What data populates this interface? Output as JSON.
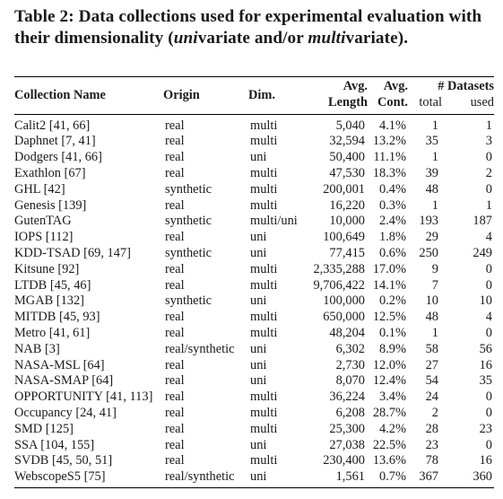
{
  "caption": {
    "prefix": "Table 2: Data collections used for experimental evaluation with their dimensionality (",
    "uni_word": "uni",
    "variate_1": "variate and/or ",
    "multi_word": "multi",
    "variate_2": "variate)."
  },
  "table": {
    "headers": {
      "name": "Collection Name",
      "origin": "Origin",
      "dim": "Dim.",
      "avg_1": "Avg.",
      "avg_2": "Avg.",
      "datasets": "# Datasets",
      "length": "Length",
      "cont": "Cont.",
      "total": "total",
      "used": "used"
    },
    "rows": [
      {
        "name": "Calit2 [41, 66]",
        "origin": "real",
        "dim": "multi",
        "length": "5,040",
        "cont": "4.1%",
        "total": "1",
        "used": "1"
      },
      {
        "name": "Daphnet [7, 41]",
        "origin": "real",
        "dim": "multi",
        "length": "32,594",
        "cont": "13.2%",
        "total": "35",
        "used": "3"
      },
      {
        "name": "Dodgers [41, 66]",
        "origin": "real",
        "dim": "uni",
        "length": "50,400",
        "cont": "11.1%",
        "total": "1",
        "used": "0"
      },
      {
        "name": "Exathlon [67]",
        "origin": "real",
        "dim": "multi",
        "length": "47,530",
        "cont": "18.3%",
        "total": "39",
        "used": "2"
      },
      {
        "name": "GHL [42]",
        "origin": "synthetic",
        "dim": "multi",
        "length": "200,001",
        "cont": "0.4%",
        "total": "48",
        "used": "0"
      },
      {
        "name": "Genesis [139]",
        "origin": "real",
        "dim": "multi",
        "length": "16,220",
        "cont": "0.3%",
        "total": "1",
        "used": "1"
      },
      {
        "name": "GutenTAG",
        "origin": "synthetic",
        "dim": "multi/uni",
        "length": "10,000",
        "cont": "2.4%",
        "total": "193",
        "used": "187"
      },
      {
        "name": "IOPS [112]",
        "origin": "real",
        "dim": "uni",
        "length": "100,649",
        "cont": "1.8%",
        "total": "29",
        "used": "4"
      },
      {
        "name": "KDD-TSAD [69, 147]",
        "origin": "synthetic",
        "dim": "uni",
        "length": "77,415",
        "cont": "0.6%",
        "total": "250",
        "used": "249"
      },
      {
        "name": "Kitsune [92]",
        "origin": "real",
        "dim": "multi",
        "length": "2,335,288",
        "cont": "17.0%",
        "total": "9",
        "used": "0"
      },
      {
        "name": "LTDB [45, 46]",
        "origin": "real",
        "dim": "multi",
        "length": "9,706,422",
        "cont": "14.1%",
        "total": "7",
        "used": "0"
      },
      {
        "name": "MGAB [132]",
        "origin": "synthetic",
        "dim": "uni",
        "length": "100,000",
        "cont": "0.2%",
        "total": "10",
        "used": "10"
      },
      {
        "name": "MITDB [45, 93]",
        "origin": "real",
        "dim": "multi",
        "length": "650,000",
        "cont": "12.5%",
        "total": "48",
        "used": "4"
      },
      {
        "name": "Metro [41, 61]",
        "origin": "real",
        "dim": "multi",
        "length": "48,204",
        "cont": "0.1%",
        "total": "1",
        "used": "0"
      },
      {
        "name": "NAB [3]",
        "origin": "real/synthetic",
        "dim": "uni",
        "length": "6,302",
        "cont": "8.9%",
        "total": "58",
        "used": "56"
      },
      {
        "name": "NASA-MSL [64]",
        "origin": "real",
        "dim": "uni",
        "length": "2,730",
        "cont": "12.0%",
        "total": "27",
        "used": "16"
      },
      {
        "name": "NASA-SMAP [64]",
        "origin": "real",
        "dim": "uni",
        "length": "8,070",
        "cont": "12.4%",
        "total": "54",
        "used": "35"
      },
      {
        "name": "OPPORTUNITY [41, 113]",
        "origin": "real",
        "dim": "multi",
        "length": "36,224",
        "cont": "3.4%",
        "total": "24",
        "used": "0"
      },
      {
        "name": "Occupancy [24, 41]",
        "origin": "real",
        "dim": "multi",
        "length": "6,208",
        "cont": "28.7%",
        "total": "2",
        "used": "0"
      },
      {
        "name": "SMD [125]",
        "origin": "real",
        "dim": "multi",
        "length": "25,300",
        "cont": "4.2%",
        "total": "28",
        "used": "23"
      },
      {
        "name": "SSA [104, 155]",
        "origin": "real",
        "dim": "uni",
        "length": "27,038",
        "cont": "22.5%",
        "total": "23",
        "used": "0"
      },
      {
        "name": "SVDB [45, 50, 51]",
        "origin": "real",
        "dim": "multi",
        "length": "230,400",
        "cont": "13.6%",
        "total": "78",
        "used": "16"
      },
      {
        "name": "WebscopeS5 [75]",
        "origin": "real/synthetic",
        "dim": "uni",
        "length": "1,561",
        "cont": "0.7%",
        "total": "367",
        "used": "360"
      }
    ]
  }
}
